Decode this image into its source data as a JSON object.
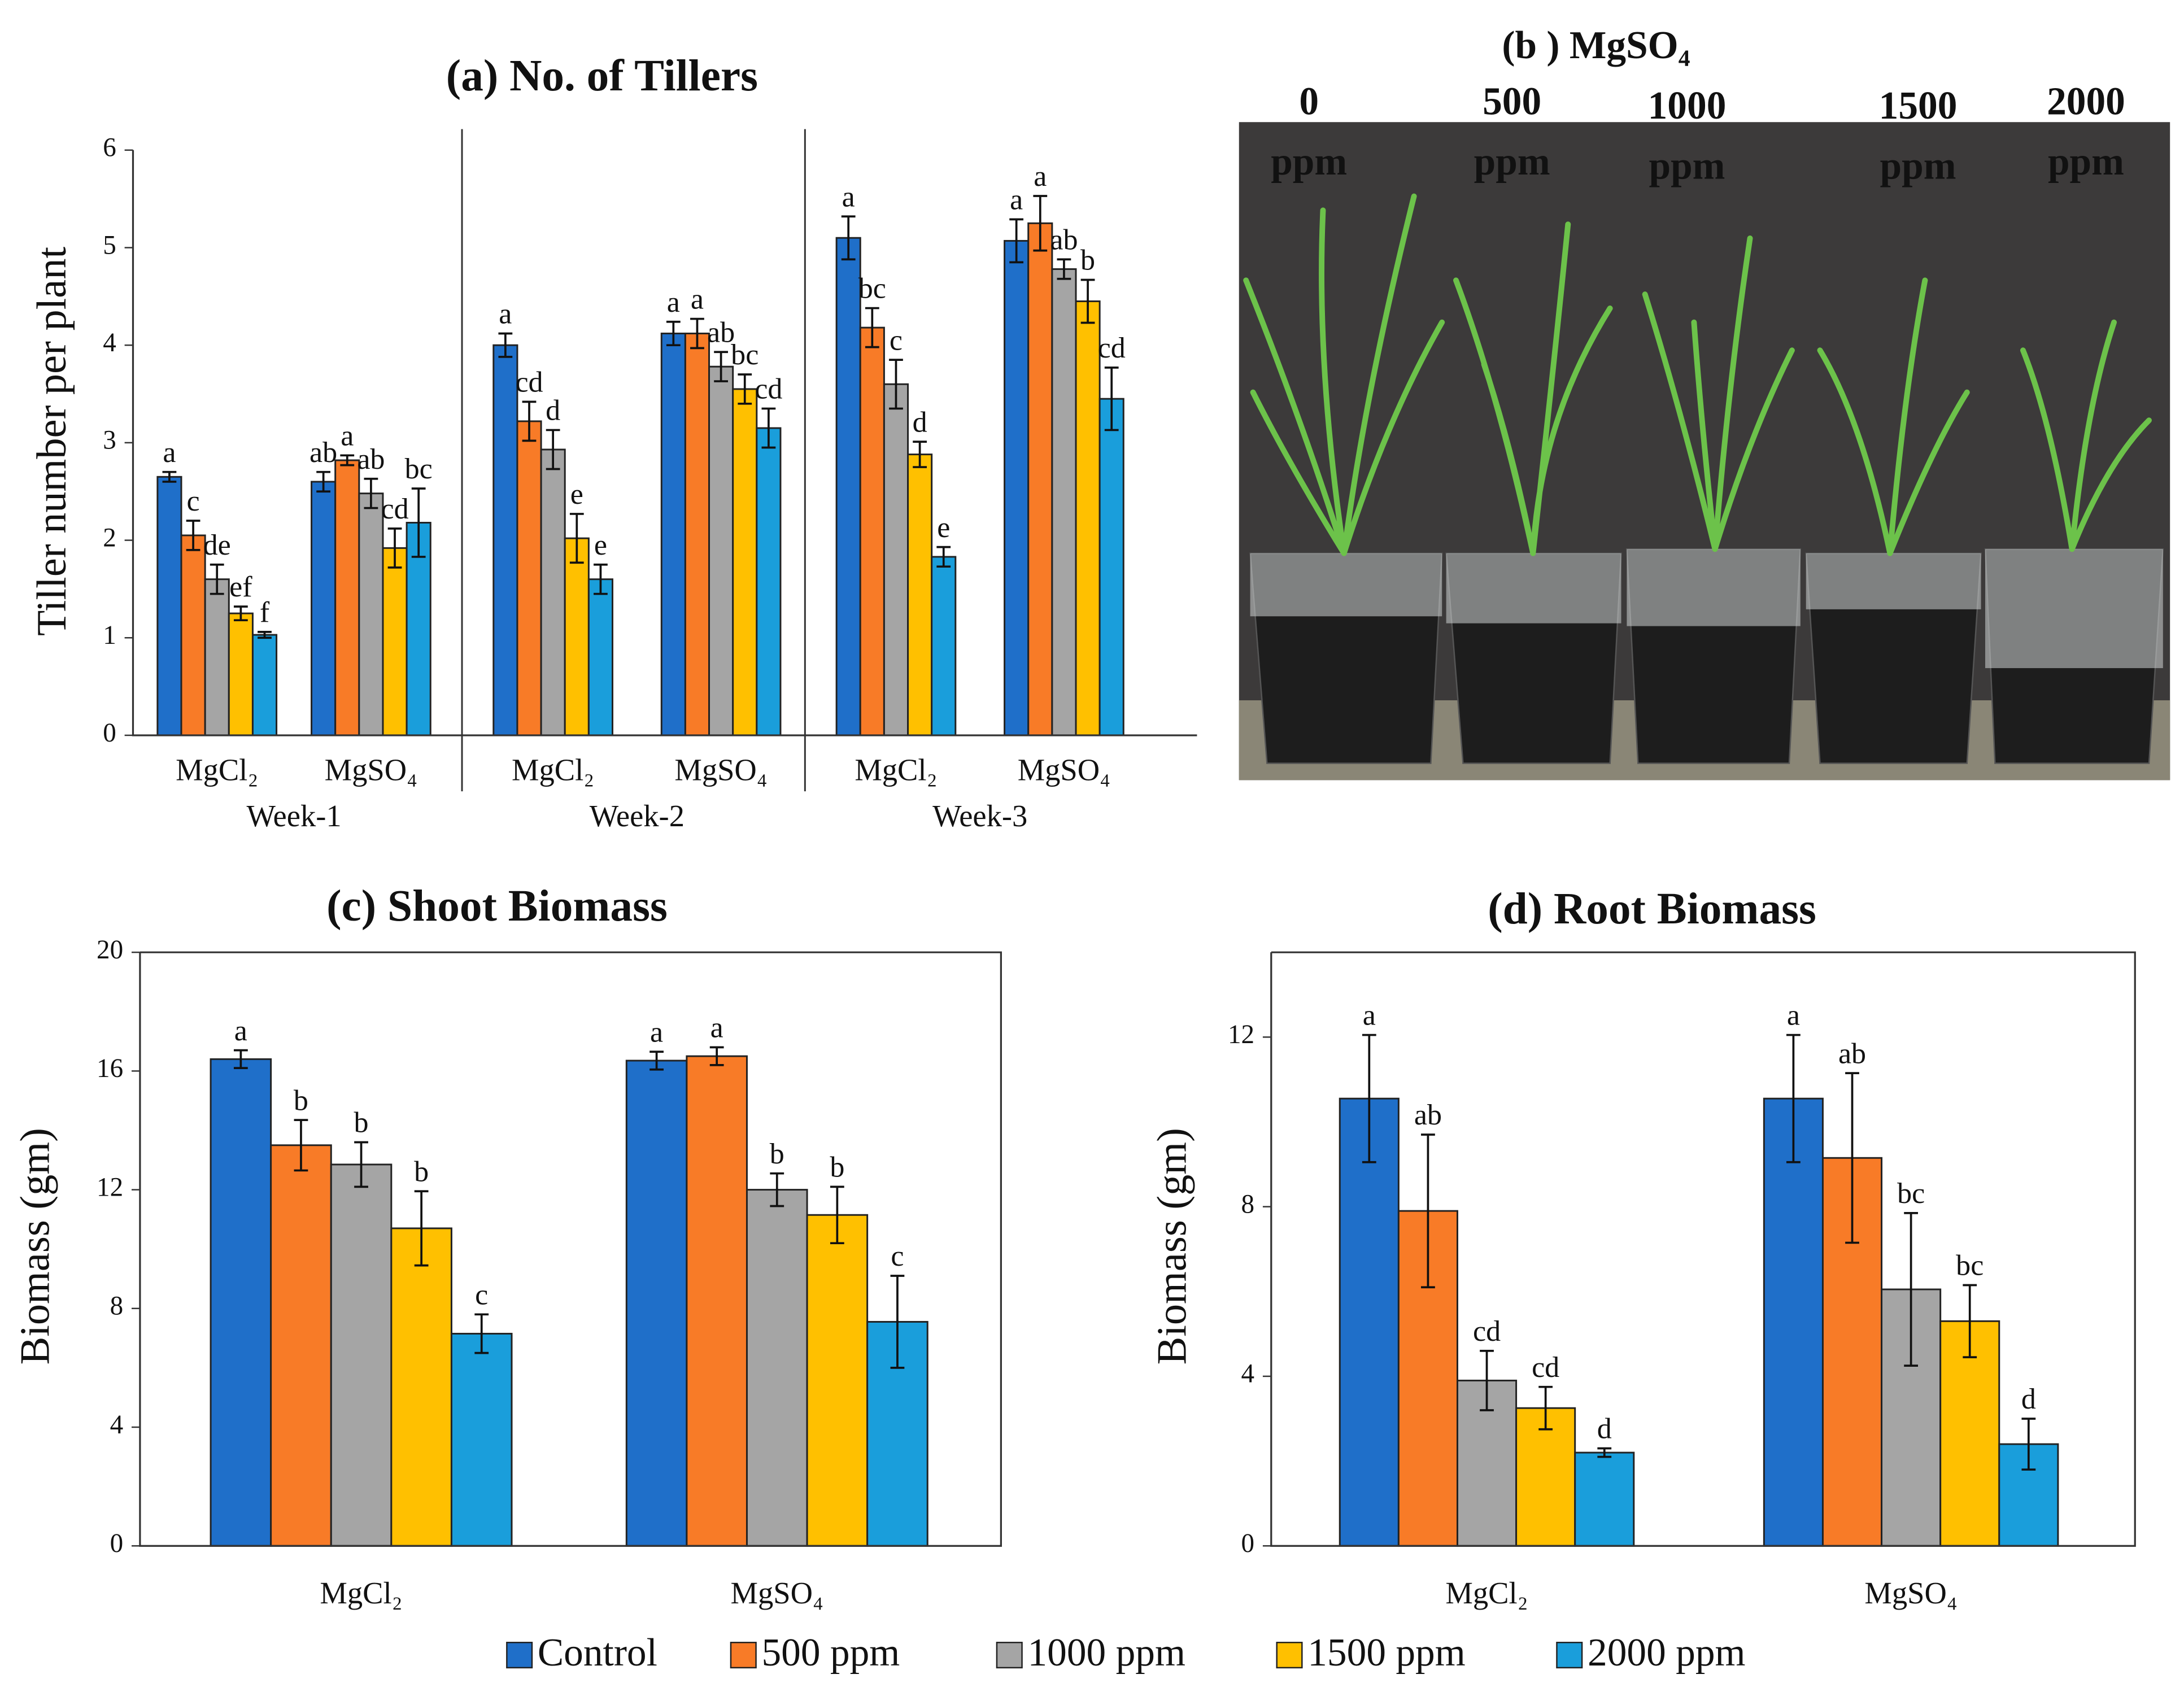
{
  "chart_data": [
    {
      "type": "bar",
      "title": "(a) No. of Tillers",
      "y_label": "Tiller number per plant",
      "categories": [
        "MgCl₂",
        "MgSO₄",
        "MgCl₂",
        "MgSO₄",
        "MgCl₂",
        "MgSO₄"
      ],
      "groups": [
        "Week-1",
        "Week-2",
        "Week-3"
      ],
      "ylim": [
        0,
        6
      ],
      "yticks": [
        0,
        1,
        2,
        3,
        4,
        5,
        6
      ],
      "grid": false,
      "legend": "bottom",
      "series": [
        {
          "name": "Control",
          "color": "#1f6fc9",
          "values": [
            2.65,
            2.6,
            4.0,
            4.12,
            5.1,
            5.07
          ],
          "errors": [
            0.05,
            0.1,
            0.12,
            0.12,
            0.22,
            0.22
          ],
          "letters": [
            "a",
            "ab",
            "a",
            "a",
            "a",
            "a"
          ]
        },
        {
          "name": "500 ppm",
          "color": "#f87b27",
          "values": [
            2.05,
            2.82,
            3.22,
            4.12,
            4.18,
            5.25
          ],
          "errors": [
            0.15,
            0.05,
            0.2,
            0.15,
            0.2,
            0.28
          ],
          "letters": [
            "c",
            "a",
            "cd",
            "a",
            "bc",
            "a"
          ]
        },
        {
          "name": "1000 ppm",
          "color": "#a5a5a5",
          "values": [
            1.6,
            2.48,
            2.93,
            3.78,
            3.6,
            4.78
          ],
          "errors": [
            0.15,
            0.15,
            0.2,
            0.15,
            0.25,
            0.1
          ],
          "letters": [
            "de",
            "ab",
            "d",
            "ab",
            "c",
            "ab"
          ]
        },
        {
          "name": "1500 ppm",
          "color": "#ffc000",
          "values": [
            1.25,
            1.92,
            2.02,
            3.55,
            2.88,
            4.45
          ],
          "errors": [
            0.07,
            0.2,
            0.25,
            0.15,
            0.13,
            0.22
          ],
          "letters": [
            "ef",
            "cd",
            "e",
            "bc",
            "d",
            "b"
          ]
        },
        {
          "name": "2000 ppm",
          "color": "#1a9edb",
          "values": [
            1.03,
            2.18,
            1.6,
            3.15,
            1.83,
            3.45
          ],
          "errors": [
            0.03,
            0.35,
            0.15,
            0.2,
            0.1,
            0.32
          ],
          "letters": [
            "f",
            "bc",
            "e",
            "cd",
            "e",
            "cd"
          ]
        }
      ]
    },
    {
      "type": "bar",
      "title": "(c) Shoot Biomass",
      "y_label": "Biomass (gm)",
      "categories": [
        "MgCl₂",
        "MgSO₄"
      ],
      "ylim": [
        0,
        20
      ],
      "yticks": [
        0,
        4,
        8,
        12,
        16,
        20
      ],
      "grid": false,
      "series": [
        {
          "color": "#1f6fc9",
          "values": [
            16.4,
            16.35
          ],
          "errors": [
            0.3,
            0.3
          ],
          "letters": [
            "a",
            "a"
          ]
        },
        {
          "color": "#f87b27",
          "values": [
            13.5,
            16.5
          ],
          "errors": [
            0.85,
            0.3
          ],
          "letters": [
            "b",
            "a"
          ]
        },
        {
          "color": "#a5a5a5",
          "values": [
            12.85,
            12.0
          ],
          "errors": [
            0.75,
            0.55
          ],
          "letters": [
            "b",
            "b"
          ]
        },
        {
          "color": "#ffc000",
          "values": [
            10.7,
            11.15
          ],
          "errors": [
            1.25,
            0.95
          ],
          "letters": [
            "b",
            "b"
          ]
        },
        {
          "color": "#1a9edb",
          "values": [
            7.15,
            7.55
          ],
          "errors": [
            0.65,
            1.55
          ],
          "letters": [
            "c",
            "c"
          ]
        }
      ]
    },
    {
      "type": "bar",
      "title": "(d) Root Biomass",
      "y_label": "Biomass (gm)",
      "categories": [
        "MgCl₂",
        "MgSO₄"
      ],
      "ylim": [
        0,
        14
      ],
      "yticks": [
        0,
        4,
        8,
        12
      ],
      "grid": false,
      "series": [
        {
          "color": "#1f6fc9",
          "values": [
            10.55,
            10.55
          ],
          "errors": [
            1.5,
            1.5
          ],
          "letters": [
            "a",
            "a"
          ]
        },
        {
          "color": "#f87b27",
          "values": [
            7.9,
            9.15
          ],
          "errors": [
            1.8,
            2.0
          ],
          "letters": [
            "ab",
            "ab"
          ]
        },
        {
          "color": "#a5a5a5",
          "values": [
            3.9,
            6.05
          ],
          "errors": [
            0.7,
            1.8
          ],
          "letters": [
            "cd",
            "bc"
          ]
        },
        {
          "color": "#ffc000",
          "values": [
            3.25,
            5.3
          ],
          "errors": [
            0.5,
            0.85
          ],
          "letters": [
            "cd",
            "bc"
          ]
        },
        {
          "color": "#1a9edb",
          "values": [
            2.2,
            2.4
          ],
          "errors": [
            0.1,
            0.6
          ],
          "letters": [
            "d",
            "d"
          ]
        }
      ]
    }
  ],
  "photo": {
    "title": "(b ) MgSO₄",
    "labels": [
      {
        "dose": "0",
        "unit": "ppm"
      },
      {
        "dose": "500",
        "unit": "ppm"
      },
      {
        "dose": "1000",
        "unit": "ppm"
      },
      {
        "dose": "1500",
        "unit": "ppm"
      },
      {
        "dose": "2000",
        "unit": "ppm"
      }
    ]
  }
}
